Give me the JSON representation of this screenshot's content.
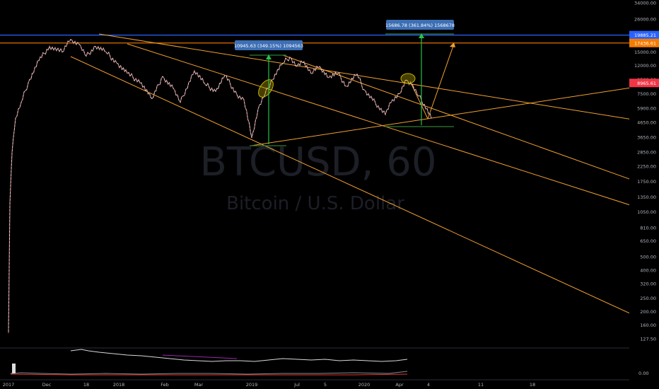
{
  "chart_data": {
    "type": "line",
    "symbol": "BTCUSD, 60",
    "description": "Bitcoin / U.S. Dollar",
    "price_scale": "log",
    "y_ticks": [
      "127.50",
      "160.00",
      "200.00",
      "250.00",
      "320.00",
      "400.00",
      "500.00",
      "650.00",
      "810.00",
      "1050.00",
      "1350.00",
      "1750.00",
      "2250.00",
      "2850.00",
      "3650.00",
      "4650.00",
      "5900.00",
      "7500.00",
      "9500.00",
      "12000.00",
      "15000.00",
      "20000.00",
      "26000.00",
      "34000.00"
    ],
    "x_ticks": [
      "2017",
      "Dec",
      "18",
      "2018",
      "Feb",
      "Mar",
      "2019",
      "Jul",
      "5",
      "2020",
      "Apr",
      "4",
      "11",
      "18"
    ],
    "price_labels": [
      {
        "value": "19885.21",
        "color": "#2962ff"
      },
      {
        "value": "17436.61",
        "color": "#f57c00"
      },
      {
        "value": "8965.61",
        "color": "#f23645"
      }
    ],
    "measurements": [
      {
        "text": "10945.63 (349.15%) 1094563"
      },
      {
        "text": "15686.78 (361.84%) 1568678"
      }
    ],
    "horizontal_levels": [
      {
        "price": 19885.21,
        "color": "#2962ff"
      },
      {
        "price": 17436.61,
        "color": "#f57c00"
      }
    ],
    "price_series": {
      "index": [
        0,
        1,
        2,
        3,
        4,
        5,
        6,
        7,
        8,
        9,
        10,
        11,
        12,
        13,
        14,
        15,
        16,
        17,
        18,
        19,
        20,
        21,
        22,
        23,
        24,
        25,
        26,
        27,
        28,
        29,
        30,
        31,
        32,
        33,
        34,
        35,
        36,
        37,
        38,
        39,
        40,
        41,
        42,
        43,
        44,
        45,
        46,
        47,
        48,
        49
      ],
      "close": [
        140,
        1200,
        2800,
        5000,
        6500,
        9000,
        13000,
        16500,
        15000,
        18500,
        17000,
        14000,
        16500,
        15000,
        12500,
        10500,
        9000,
        6900,
        10000,
        8200,
        6500,
        11000,
        8800,
        7800,
        10200,
        7400,
        6800,
        3600,
        5800,
        7500,
        9500,
        12500,
        13800,
        11800,
        12800,
        10500,
        11800,
        9800,
        10500,
        8500,
        10400,
        8000,
        5300,
        6800,
        7500,
        9400,
        8800,
        7200,
        6300,
        5000
      ]
    },
    "oscillator_ticks": [
      "0.00"
    ],
    "grid": false,
    "theme": "dark"
  }
}
